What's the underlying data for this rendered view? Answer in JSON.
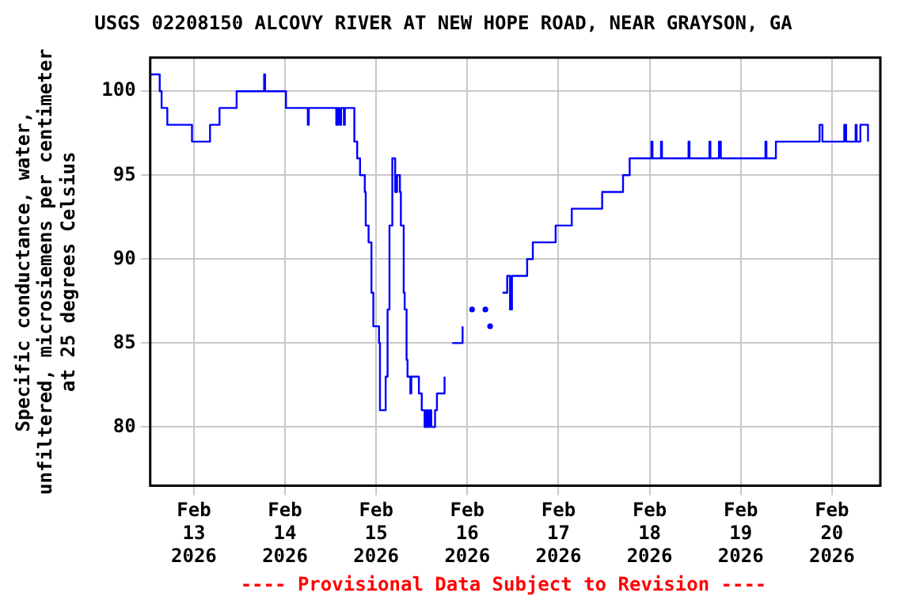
{
  "chart_data": {
    "type": "step",
    "title": "USGS 02208150 ALCOVY RIVER AT NEW HOPE ROAD, NEAR GRAYSON, GA",
    "ylabel": "Specific conductance, water,\nunfiltered, microsiemens per centimeter\nat 25 degrees Celsius",
    "annotations": [
      "---- Provisional Data Subject to Revision ----"
    ],
    "xlim": [
      "2026-02-12T12:30",
      "2026-02-20T12:45"
    ],
    "xticks": [
      {
        "value": "2026-02-13",
        "label": "Feb\n13\n2026"
      },
      {
        "value": "2026-02-14",
        "label": "Feb\n14\n2026"
      },
      {
        "value": "2026-02-15",
        "label": "Feb\n15\n2026"
      },
      {
        "value": "2026-02-16",
        "label": "Feb\n16\n2026"
      },
      {
        "value": "2026-02-17",
        "label": "Feb\n17\n2026"
      },
      {
        "value": "2026-02-18",
        "label": "Feb\n18\n2026"
      },
      {
        "value": "2026-02-19",
        "label": "Feb\n19\n2026"
      },
      {
        "value": "2026-02-20",
        "label": "Feb\n20\n2026"
      }
    ],
    "ylim": [
      76.5,
      102
    ],
    "yticks": [
      80,
      85,
      90,
      95,
      100
    ],
    "grid": true,
    "legend": false,
    "marker": "none",
    "line_style": "solid",
    "series": [
      {
        "color": "#0000ff",
        "x": [
          "2026-02-12T12:30",
          "2026-02-12T15:00",
          "2026-02-12T15:30",
          "2026-02-12T17:00",
          "2026-02-12T23:30",
          "2026-02-13T04:15",
          "2026-02-13T06:45",
          "2026-02-13T11:15",
          "2026-02-13T18:30",
          "2026-02-13T18:45",
          "2026-02-13T19:00",
          "2026-02-14T00:15",
          "2026-02-14T06:00",
          "2026-02-14T06:15",
          "2026-02-14T13:30",
          "2026-02-14T13:45",
          "2026-02-14T14:15",
          "2026-02-14T14:45",
          "2026-02-14T15:30",
          "2026-02-14T15:45",
          "2026-02-14T17:15",
          "2026-02-14T18:15",
          "2026-02-14T19:00",
          "2026-02-14T19:45",
          "2026-02-14T21:00",
          "2026-02-14T21:15",
          "2026-02-14T22:00",
          "2026-02-14T22:45",
          "2026-02-14T23:15",
          "2026-02-15T00:00",
          "2026-02-15T00:45",
          "2026-02-15T01:00",
          "2026-02-15T02:30",
          "2026-02-15T03:00",
          "2026-02-15T03:30",
          "2026-02-15T04:15",
          "2026-02-15T05:00",
          "2026-02-15T05:30",
          "2026-02-15T06:15",
          "2026-02-15T06:30",
          "2026-02-15T07:15",
          "2026-02-15T07:30",
          "2026-02-15T08:00",
          "2026-02-15T08:15",
          "2026-02-15T09:00",
          "2026-02-15T09:15",
          "2026-02-15T11:15",
          "2026-02-15T12:00",
          "2026-02-15T12:45",
          "2026-02-15T13:15",
          "2026-02-15T13:30",
          "2026-02-15T14:00",
          "2026-02-15T14:30",
          "2026-02-15T15:30",
          "2026-02-15T16:00",
          "2026-02-15T18:00",
          "2026-02-15T19:00",
          "2026-02-15T20:00",
          "2026-02-15T22:15",
          "2026-02-15T22:45",
          "2026-02-16T00:00",
          "2026-02-16T01:15",
          "2026-02-16T03:00",
          "2026-02-16T04:45",
          "2026-02-16T05:30",
          "2026-02-16T06:00",
          "2026-02-16T08:00",
          "2026-02-16T09:15",
          "2026-02-16T10:30",
          "2026-02-16T11:15",
          "2026-02-16T11:45",
          "2026-02-16T15:45",
          "2026-02-16T17:15",
          "2026-02-16T23:15",
          "2026-02-17T03:30",
          "2026-02-17T11:30",
          "2026-02-17T17:00",
          "2026-02-17T18:45",
          "2026-02-18T00:30",
          "2026-02-18T00:45",
          "2026-02-18T03:00",
          "2026-02-18T03:15",
          "2026-02-18T10:15",
          "2026-02-18T10:30",
          "2026-02-18T15:45",
          "2026-02-18T16:00",
          "2026-02-18T18:15",
          "2026-02-18T18:45",
          "2026-02-19T06:30",
          "2026-02-19T06:45",
          "2026-02-19T09:15",
          "2026-02-19T20:45",
          "2026-02-19T21:30",
          "2026-02-20T03:15",
          "2026-02-20T03:45",
          "2026-02-20T06:15",
          "2026-02-20T06:30",
          "2026-02-20T07:30",
          "2026-02-20T09:30"
        ],
        "values": [
          101,
          100,
          99,
          98,
          97,
          98,
          99,
          100,
          101,
          100,
          100,
          99,
          98,
          99,
          98,
          99,
          98,
          99,
          98,
          99,
          99,
          97,
          96,
          95,
          94,
          92,
          91,
          88,
          86,
          86,
          85,
          81,
          83,
          87,
          92,
          96,
          94,
          95,
          94,
          92,
          88,
          87,
          84,
          83,
          82,
          83,
          82,
          81,
          80,
          81,
          80,
          81,
          80,
          81,
          82,
          83,
          null,
          85,
          85,
          86,
          null,
          87,
          null,
          87,
          null,
          86,
          null,
          88,
          89,
          87,
          89,
          90,
          91,
          92,
          93,
          94,
          95,
          96,
          97,
          96,
          97,
          96,
          97,
          96,
          97,
          96,
          97,
          96,
          97,
          96,
          97,
          98,
          97,
          98,
          97,
          98,
          97,
          98,
          97
        ]
      }
    ]
  }
}
